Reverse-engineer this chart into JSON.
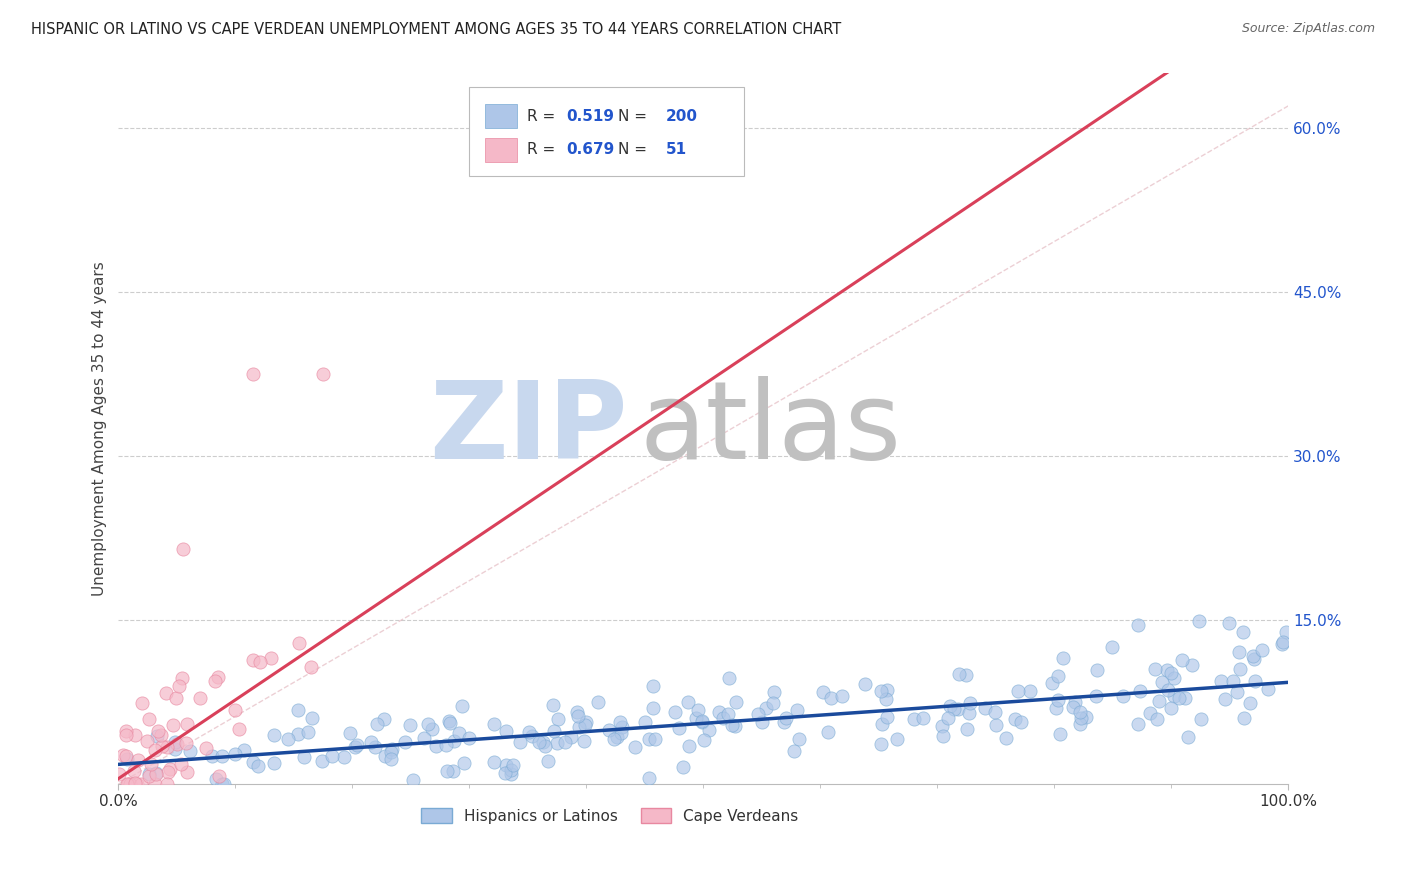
{
  "title": "HISPANIC OR LATINO VS CAPE VERDEAN UNEMPLOYMENT AMONG AGES 35 TO 44 YEARS CORRELATION CHART",
  "source": "Source: ZipAtlas.com",
  "ylabel": "Unemployment Among Ages 35 to 44 years",
  "blue_R": 0.519,
  "blue_N": 200,
  "pink_R": 0.679,
  "pink_N": 51,
  "blue_color": "#aec6e8",
  "blue_edge": "#7aaad4",
  "pink_color": "#f5b8c8",
  "pink_edge": "#e888a0",
  "blue_line_color": "#1a4a9c",
  "pink_line_color": "#d9405a",
  "ref_line_color": "#e0b0b8",
  "background": "#ffffff",
  "grid_color": "#c8c8c8",
  "title_color": "#222222",
  "source_color": "#666666",
  "legend_text_color": "#2255cc",
  "watermark_zip_color": "#c8d8ee",
  "watermark_atlas_color": "#c0c0c0",
  "xlim": [
    0,
    1.0
  ],
  "ylim": [
    0,
    0.65
  ],
  "yticks": [
    0.0,
    0.15,
    0.3,
    0.45,
    0.6
  ],
  "ytick_labels": [
    "",
    "15.0%",
    "30.0%",
    "45.0%",
    "60.0%"
  ],
  "xtick_labels": [
    "0.0%",
    "100.0%"
  ],
  "xticks": [
    0.0,
    1.0
  ],
  "blue_slope": 0.075,
  "blue_intercept": 0.018,
  "pink_slope": 0.72,
  "pink_intercept": 0.005,
  "legend_label_blue": "Hispanics or Latinos",
  "legend_label_pink": "Cape Verdeans"
}
